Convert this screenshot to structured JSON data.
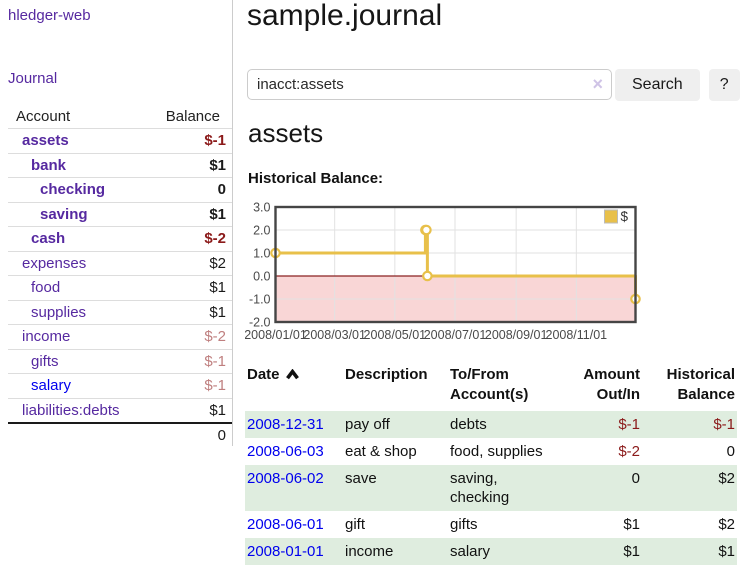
{
  "app": {
    "brand": "hledger-web"
  },
  "sidebar": {
    "journal_link": "Journal",
    "account_table": {
      "headers": {
        "account": "Account",
        "balance": "Balance"
      },
      "rows": [
        {
          "name": "assets",
          "balance": "$-1",
          "indent": 0,
          "bold": true,
          "balance_style": "neg-dark"
        },
        {
          "name": "bank",
          "balance": "$1",
          "indent": 1,
          "bold": true,
          "balance_style": "normal"
        },
        {
          "name": "checking",
          "balance": "0",
          "indent": 2,
          "bold": true,
          "balance_style": "normal"
        },
        {
          "name": "saving",
          "balance": "$1",
          "indent": 2,
          "bold": true,
          "balance_style": "normal"
        },
        {
          "name": "cash",
          "balance": "$-2",
          "indent": 1,
          "bold": true,
          "balance_style": "neg-dark"
        },
        {
          "name": "expenses",
          "balance": "$2",
          "indent": 0,
          "bold": false,
          "balance_style": "normal"
        },
        {
          "name": "food",
          "balance": "$1",
          "indent": 1,
          "bold": false,
          "balance_style": "normal"
        },
        {
          "name": "supplies",
          "balance": "$1",
          "indent": 1,
          "bold": false,
          "balance_style": "normal"
        },
        {
          "name": "income",
          "balance": "$-2",
          "indent": 0,
          "bold": false,
          "balance_style": "neg-light"
        },
        {
          "name": "gifts",
          "balance": "$-1",
          "indent": 1,
          "bold": false,
          "balance_style": "neg-light"
        },
        {
          "name": "salary",
          "balance": "$-1",
          "indent": 1,
          "bold": false,
          "balance_style": "neg-light",
          "link_style": "blue"
        },
        {
          "name": "liabilities:debts",
          "balance": "$1",
          "indent": 0,
          "bold": false,
          "balance_style": "normal"
        }
      ],
      "total": "0"
    }
  },
  "main": {
    "title": "sample.journal",
    "search": {
      "value": "inacct:assets",
      "clear_icon": "×",
      "search_button": "Search",
      "help_button": "?"
    },
    "account_heading": "assets",
    "section_label": "Historical Balance:"
  },
  "chart_data": {
    "type": "line",
    "title": "Historical Balance",
    "step": true,
    "series": [
      {
        "name": "$",
        "color": "#e8c04a",
        "points": [
          [
            "2008-01-01",
            1
          ],
          [
            "2008-06-01",
            2
          ],
          [
            "2008-06-02",
            2
          ],
          [
            "2008-06-03",
            0
          ],
          [
            "2008-12-31",
            -1
          ]
        ]
      }
    ],
    "ylim": [
      -2,
      3
    ],
    "y_ticks": [
      "3.0",
      "2.0",
      "1.0",
      "0.0",
      "-1.0",
      "-2.0"
    ],
    "x_ticks": [
      {
        "label": "2008/01/01",
        "day_of_year": 1
      },
      {
        "label": "2008/03/01",
        "day_of_year": 61
      },
      {
        "label": "2008/05/01",
        "day_of_year": 122
      },
      {
        "label": "2008/07/01",
        "day_of_year": 183
      },
      {
        "label": "2008/09/01",
        "day_of_year": 245
      },
      {
        "label": "2008/11/01",
        "day_of_year": 306
      }
    ],
    "x_range_days": [
      1,
      366
    ],
    "grid": true,
    "negative_region_fill": "#f9d6d6",
    "zero_line_color": "#8b2222",
    "legend": {
      "label": "$",
      "position": "top-right"
    }
  },
  "register": {
    "headers": [
      {
        "label": "Date",
        "sort": "asc"
      },
      {
        "label": "Description"
      },
      {
        "label": "To/From Account(s)"
      },
      {
        "label": "Amount Out/In",
        "align": "right"
      },
      {
        "label": "Historical Balance",
        "align": "right"
      }
    ],
    "rows": [
      {
        "date": "2008-12-31",
        "description": "pay off",
        "accounts": "debts",
        "amount": "$-1",
        "balance": "$-1"
      },
      {
        "date": "2008-06-03",
        "description": "eat & shop",
        "accounts": "food, supplies",
        "amount": "$-2",
        "balance": "0"
      },
      {
        "date": "2008-06-02",
        "description": "save",
        "accounts": "saving, checking",
        "amount": "0",
        "balance": "$2"
      },
      {
        "date": "2008-06-01",
        "description": "gift",
        "accounts": "gifts",
        "amount": "$1",
        "balance": "$2"
      },
      {
        "date": "2008-01-01",
        "description": "income",
        "accounts": "salary",
        "amount": "$1",
        "balance": "$1"
      }
    ]
  }
}
